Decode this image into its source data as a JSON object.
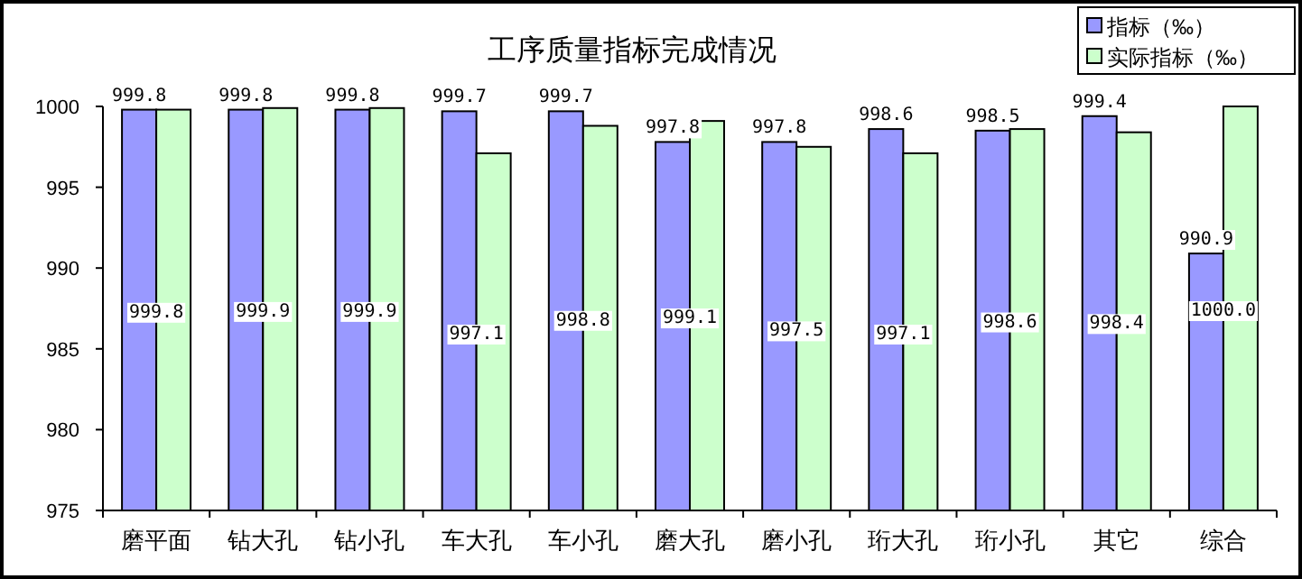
{
  "chart_data": {
    "type": "bar",
    "title": "工序质量指标完成情况",
    "categories": [
      "磨平面",
      "钻大孔",
      "钻小孔",
      "车大孔",
      "车小孔",
      "磨大孔",
      "磨小孔",
      "珩大孔",
      "珩小孔",
      "其它",
      "综合"
    ],
    "series": [
      {
        "name": "指标（‰）",
        "color": "#9999ff",
        "values": [
          999.8,
          999.8,
          999.8,
          999.7,
          999.7,
          997.8,
          997.8,
          998.6,
          998.5,
          999.4,
          990.9
        ],
        "value_labels": [
          "999.8",
          "999.8",
          "999.8",
          "999.7",
          "999.7",
          "997.8",
          "997.8",
          "998.6",
          "998.5",
          "999.4",
          "990.9"
        ]
      },
      {
        "name": "实际指标（‰）",
        "color": "#ccffcc",
        "values": [
          999.8,
          999.9,
          999.9,
          997.1,
          998.8,
          999.1,
          997.5,
          997.1,
          998.6,
          998.4,
          1000.0
        ],
        "value_labels": [
          "999.8",
          "999.9",
          "999.9",
          "997.1",
          "998.8",
          "999.1",
          "997.5",
          "997.1",
          "998.6",
          "998.4",
          "1000.0"
        ]
      }
    ],
    "ylim": [
      975,
      1000
    ],
    "yticks": [
      975,
      980,
      985,
      990,
      995,
      1000
    ],
    "legend": "top right",
    "grid": false
  }
}
